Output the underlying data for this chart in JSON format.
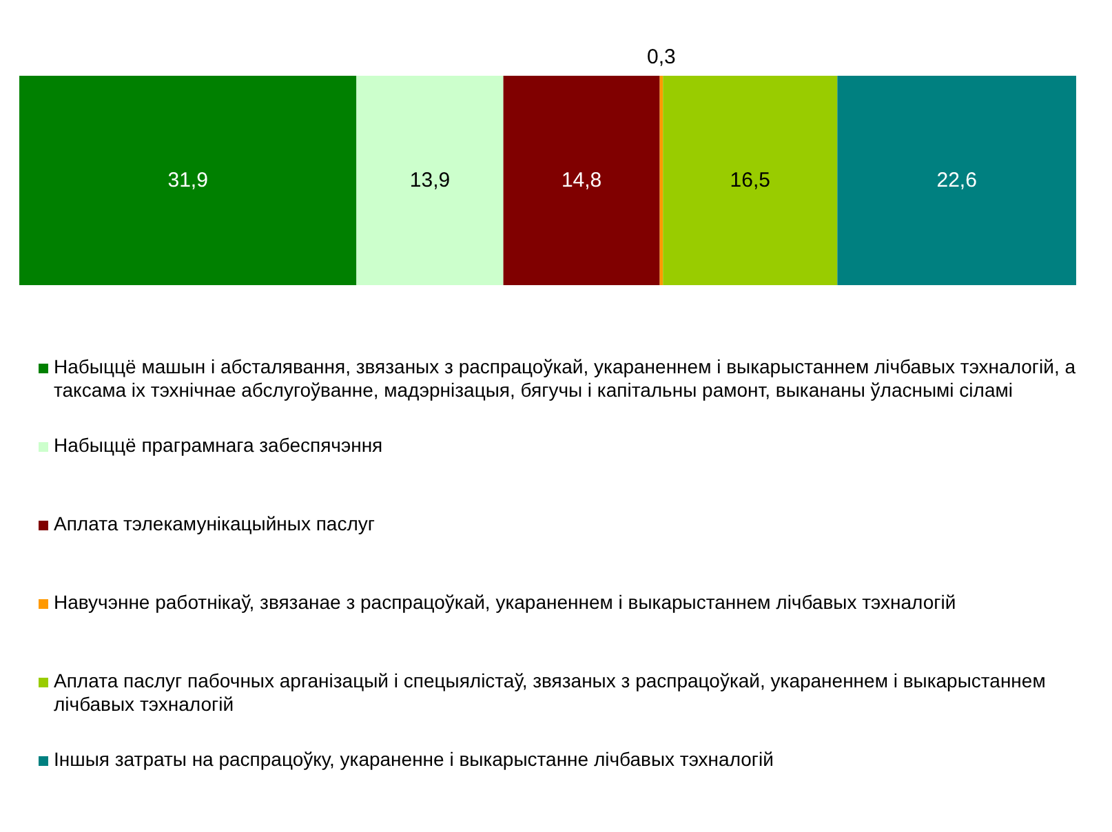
{
  "chart_data": {
    "type": "bar",
    "orientation": "horizontal",
    "stacked": true,
    "data_labels": true,
    "tick_labels": false,
    "legend": "bottom",
    "categories": [
      null
    ],
    "series": [
      {
        "name": "Набыццё машын і абсталявання, звязаных з распрацоўкай, укараненнем і выкарыстаннем лічбавых тэхналогій, а таксама іх тэхнічнае абслугоўванне, мадэрнізацыя, бягучы і капітальны рамонт, выкананы ўласнымі сіламі",
        "color": "#008000",
        "values": [
          31.9
        ],
        "value_labels": [
          "31,9"
        ]
      },
      {
        "name": "Набыццё праграмнага забеспячэння",
        "color": "#ccffcc",
        "values": [
          13.9
        ],
        "value_labels": [
          "13,9"
        ]
      },
      {
        "name": "Аплата тэлекамунікацыйных паслуг",
        "color": "#800000",
        "values": [
          14.8
        ],
        "value_labels": [
          "14,8"
        ]
      },
      {
        "name": "Навучэнне работнікаў, звязанае з распрацоўкай, укараненнем і выкарыстаннем лічбавых тэхналогій",
        "color": "#ff9900",
        "values": [
          0.3
        ],
        "value_labels": [
          "0,3"
        ]
      },
      {
        "name": "Аплата паслуг пабочных арганізацый і спецыялістаў, звязаных з распрацоўкай, укараненнем і выкарыстаннем лічбавых тэхналогій",
        "color": "#99cc00",
        "values": [
          16.5
        ],
        "value_labels": [
          "16,5"
        ]
      },
      {
        "name": "Іншыя затраты на распрацоўку, укараненне і выкарыстанне лічбавых тэхналогій",
        "color": "#008080",
        "values": [
          22.6
        ],
        "value_labels": [
          "22,6"
        ]
      }
    ]
  }
}
